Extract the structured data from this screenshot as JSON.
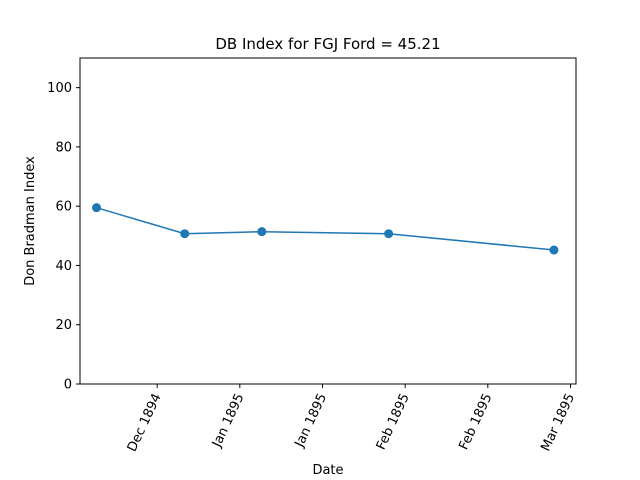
{
  "chart_data": {
    "type": "line",
    "title": "DB Index for FGJ Ford = 45.21",
    "xlabel": "Date",
    "ylabel": "Don Bradman Index",
    "x": [
      "1894-12-04",
      "1894-12-20",
      "1895-01-03",
      "1895-01-26",
      "1895-02-25"
    ],
    "values": [
      59.5,
      50.7,
      51.4,
      50.7,
      45.21
    ],
    "xticks": [
      "Dec 1894",
      "Jan 1895",
      "Jan 1895",
      "Feb 1895",
      "Feb 1895",
      "Mar 1895"
    ],
    "xtick_dates": [
      "1894-12-15",
      "1894-12-30",
      "1895-01-14",
      "1895-01-29",
      "1895-02-13",
      "1895-02-28"
    ],
    "xlim": [
      "1894-12-01",
      "1895-03-01"
    ],
    "yticks": [
      0,
      20,
      40,
      60,
      80,
      100
    ],
    "ylim": [
      0,
      110
    ],
    "line_color": "#1f77b4",
    "grid": false,
    "legend": "none"
  }
}
